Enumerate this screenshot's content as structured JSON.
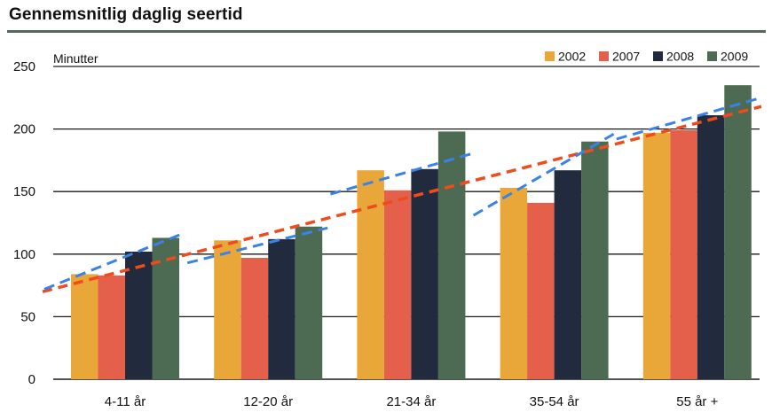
{
  "chart_data": {
    "type": "bar",
    "title": "Gennemsnitlig daglig seertid",
    "ylabel": "Minutter",
    "xlabel": "",
    "ylim": [
      0,
      250
    ],
    "yticks": [
      0,
      50,
      100,
      150,
      200,
      250
    ],
    "grid": true,
    "legend": "top-right",
    "categories": [
      "4-11 år",
      "12-20 år",
      "21-34 år",
      "35-54 år",
      "55 år +"
    ],
    "series": [
      {
        "name": "2002",
        "color": "#e9a73a",
        "values": [
          84,
          111,
          167,
          153,
          197
        ]
      },
      {
        "name": "2007",
        "color": "#e5604a",
        "values": [
          83,
          97,
          151,
          141,
          199
        ]
      },
      {
        "name": "2008",
        "color": "#222a3d",
        "values": [
          102,
          112,
          168,
          167,
          211
        ]
      },
      {
        "name": "2009",
        "color": "#4d6a52",
        "values": [
          113,
          122,
          198,
          190,
          235
        ]
      }
    ],
    "annotations": {
      "overall_trend": {
        "color": "#f04b1c",
        "x": [
          "4-11 år",
          "55 år +"
        ],
        "y": [
          70,
          218
        ]
      },
      "group_trends": {
        "color": "#3b82e8",
        "lines": [
          {
            "category": "4-11 år",
            "y": [
              72,
              117
            ]
          },
          {
            "category": "12-20 år",
            "y": [
              93,
              121
            ]
          },
          {
            "category": "21-34 år",
            "y": [
              148,
              180
            ]
          },
          {
            "category": "35-54 år",
            "y": [
              131,
              196
            ]
          },
          {
            "category": "55 år +",
            "y": [
              192,
              224
            ]
          }
        ]
      }
    }
  }
}
